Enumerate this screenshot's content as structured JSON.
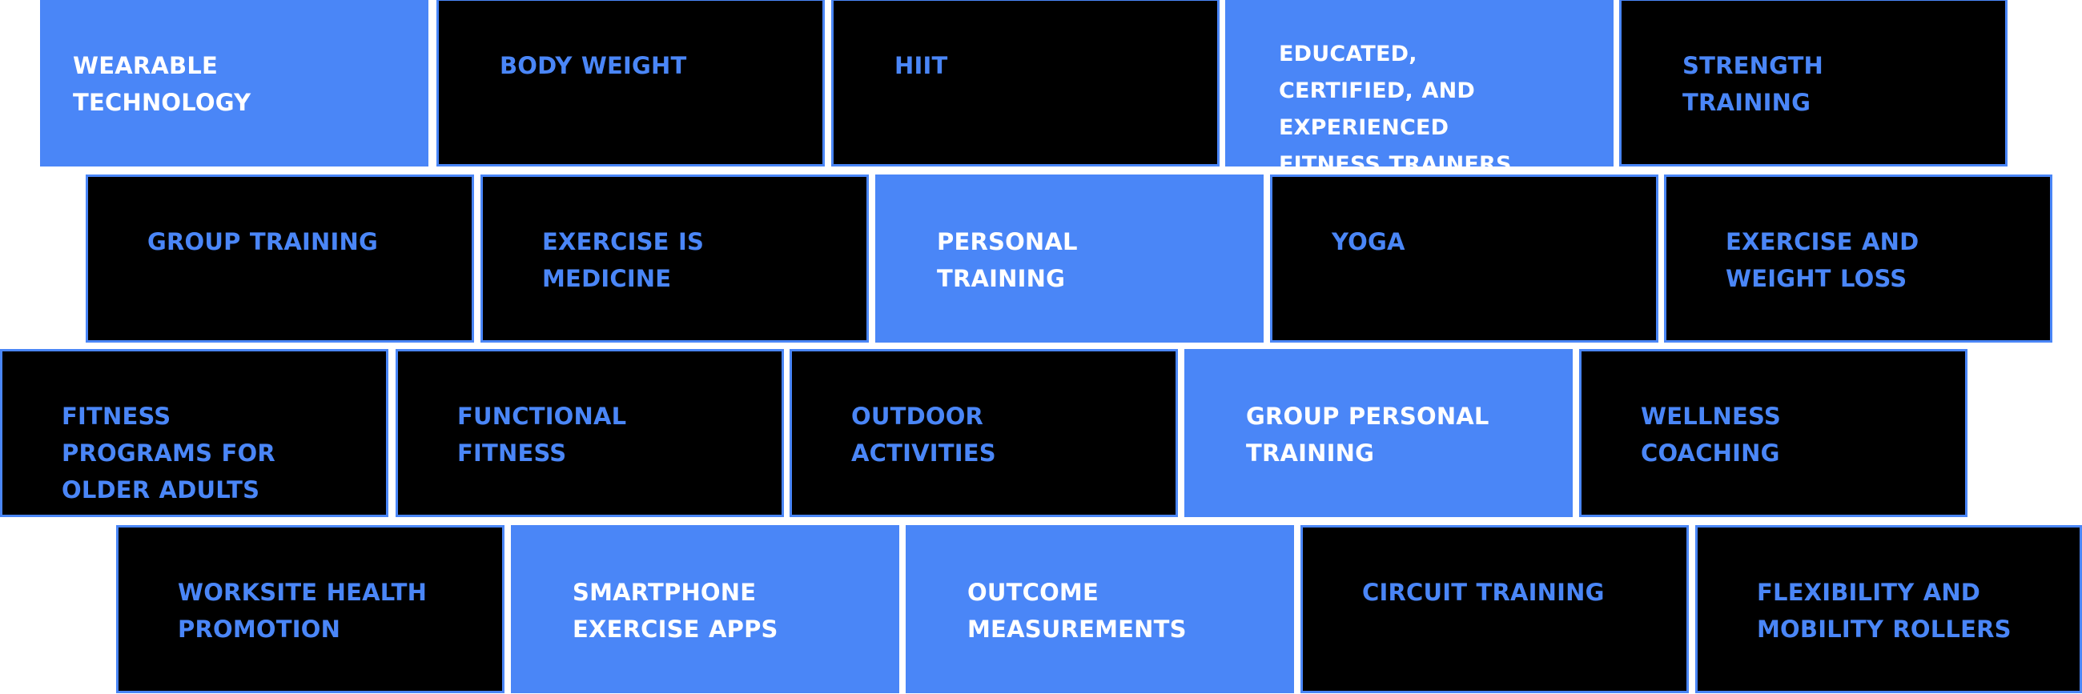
{
  "colors": {
    "accent": "#4a86f7",
    "dark_tile": "#000000",
    "light_text": "#ffffff"
  },
  "rows": [
    [
      "WEARABLE TECHNOLOGY",
      "BODY WEIGHT",
      "HIIT",
      "EDUCATED, CERTIFIED, AND EXPERIENCED FITNESS TRAINERS",
      "STRENGTH TRAINING"
    ],
    [
      "GROUP TRAINING",
      "EXERCISE IS MEDICINE",
      "PERSONAL TRAINING",
      "YOGA",
      "EXERCISE AND WEIGHT LOSS"
    ],
    [
      "FITNESS PROGRAMS FOR OLDER ADULTS",
      "FUNCTIONAL FITNESS",
      "OUTDOOR ACTIVITIES",
      "GROUP PERSONAL TRAINING",
      "WELLNESS COACHING"
    ],
    [
      "WORKSITE HEALTH PROMOTION",
      "SMARTPHONE EXERCISE APPS",
      "OUTCOME MEASUREMENTS",
      "CIRCUIT TRAINING",
      "FLEXIBILITY AND MOBILITY ROLLERS"
    ]
  ],
  "highlighted": [
    "WEARABLE TECHNOLOGY",
    "EDUCATED, CERTIFIED, AND EXPERIENCED FITNESS TRAINERS",
    "PERSONAL TRAINING",
    "GROUP PERSONAL TRAINING",
    "SMARTPHONE EXERCISE APPS",
    "OUTCOME MEASUREMENTS"
  ]
}
